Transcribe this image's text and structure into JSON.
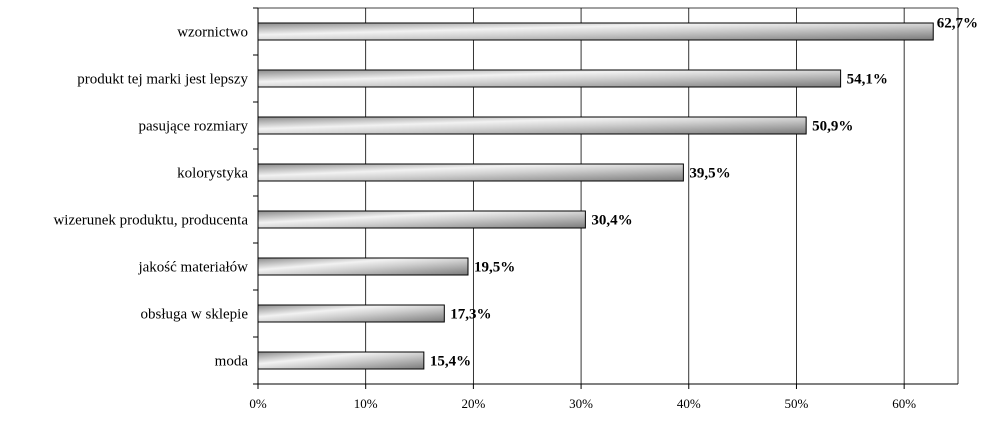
{
  "chart_data": {
    "type": "bar",
    "orientation": "horizontal",
    "categories": [
      "wzornictwo",
      "produkt tej marki jest lepszy",
      "pasujące rozmiary",
      "kolorystyka",
      "wizerunek produktu, producenta",
      "jakość materiałów",
      "obsługa w sklepie",
      "moda"
    ],
    "values": [
      62.7,
      54.1,
      50.9,
      39.5,
      30.4,
      19.5,
      17.3,
      15.4
    ],
    "value_labels": [
      "62,7%",
      "54,1%",
      "50,9%",
      "39,5%",
      "30,4%",
      "19,5%",
      "17,3%",
      "15,4%"
    ],
    "xlim": [
      0,
      65
    ],
    "xticks": [
      0,
      10,
      20,
      30,
      40,
      50,
      60
    ],
    "xtick_labels": [
      "0%",
      "10%",
      "20%",
      "30%",
      "40%",
      "50%",
      "60%"
    ],
    "grid": "vertical",
    "bar_style": "silver-gradient",
    "colors": {
      "bar_light": "#f4f4f4",
      "bar_dark": "#7c7c7c",
      "bar_border": "#000000",
      "grid": "#000000"
    }
  }
}
